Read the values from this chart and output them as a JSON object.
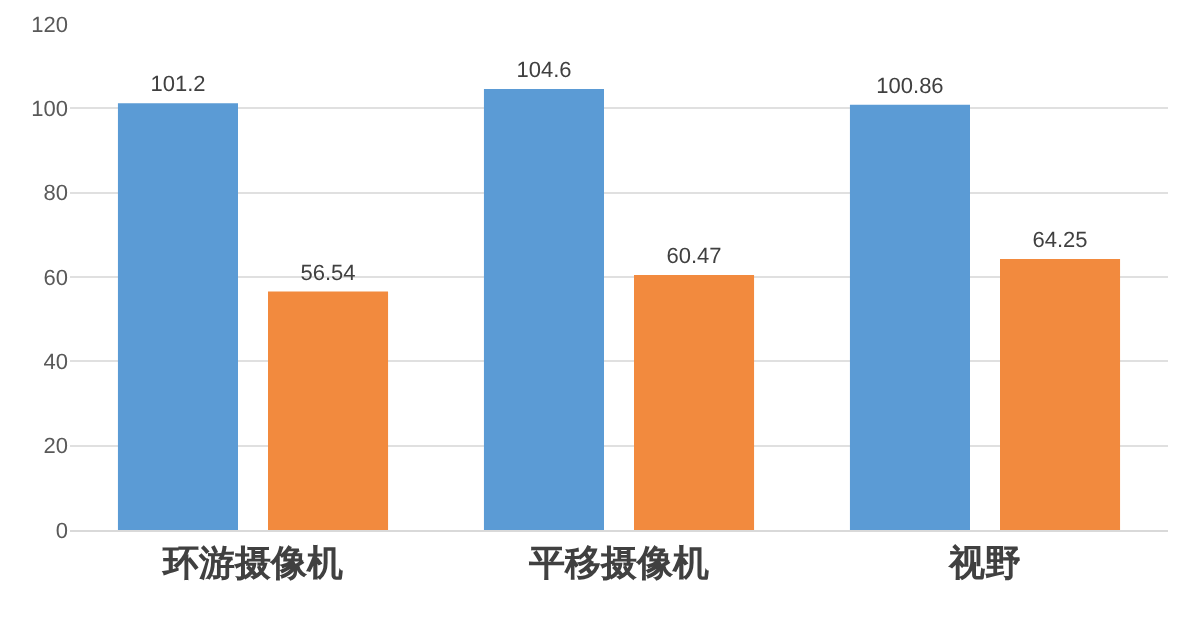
{
  "chart_data": {
    "type": "bar",
    "categories": [
      "环游摄像机",
      "平移摄像机",
      "视野"
    ],
    "series": [
      {
        "color": "#5b9bd5",
        "values": [
          101.2,
          104.6,
          100.86
        ]
      },
      {
        "color": "#f28a3e",
        "values": [
          56.54,
          60.47,
          64.25
        ]
      }
    ],
    "ylim": [
      0,
      120
    ],
    "yticks": [
      0,
      20,
      40,
      60,
      80,
      100,
      120
    ],
    "grid": "y",
    "data_labels": true
  }
}
